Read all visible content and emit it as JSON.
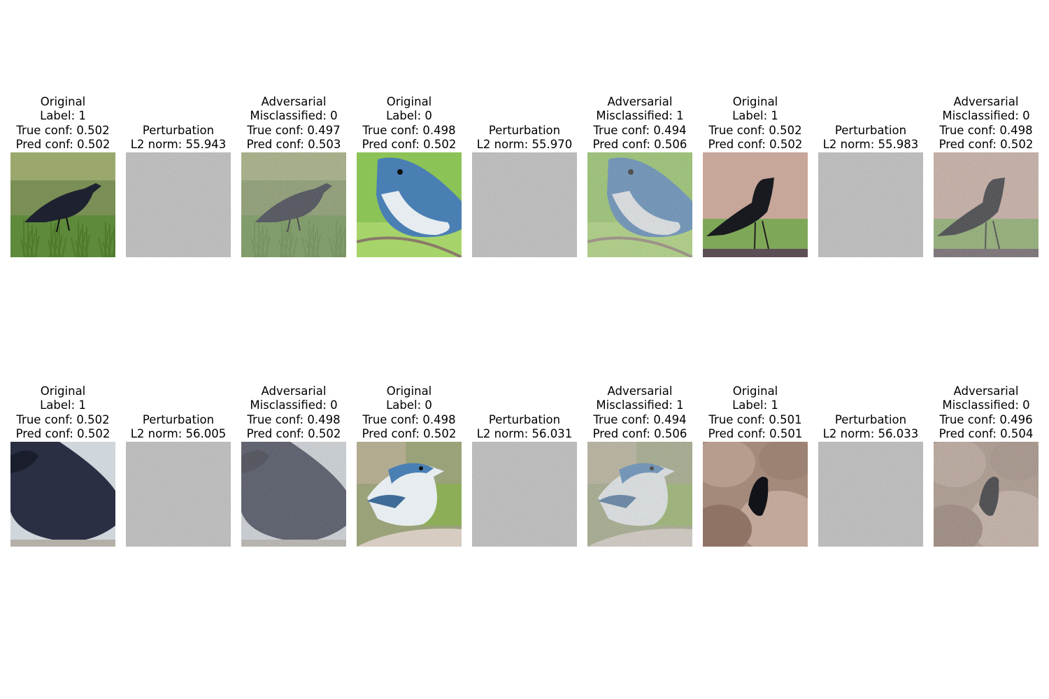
{
  "rows": [
    {
      "panels": [
        {
          "lines": [
            "Original",
            "Label: 1",
            "True conf: 0.502",
            "Pred conf: 0.502"
          ],
          "kind": "original",
          "subject": "crow",
          "scene": "grass"
        },
        {
          "lines": [
            "Perturbation",
            "L2 norm: 55.943"
          ],
          "kind": "perturbation"
        },
        {
          "lines": [
            "Adversarial",
            "Misclassified: 0",
            "True conf: 0.497",
            "Pred conf: 0.503"
          ],
          "kind": "adversarial",
          "subject": "crow",
          "scene": "grass"
        },
        {
          "lines": [
            "Original",
            "Label: 0",
            "True conf: 0.498",
            "Pred conf: 0.502"
          ],
          "kind": "original",
          "subject": "warbler",
          "scene": "green-closeup"
        },
        {
          "lines": [
            "Perturbation",
            "L2 norm: 55.970"
          ],
          "kind": "perturbation"
        },
        {
          "lines": [
            "Adversarial",
            "Misclassified: 1",
            "True conf: 0.494",
            "Pred conf: 0.506"
          ],
          "kind": "adversarial",
          "subject": "warbler",
          "scene": "green-closeup"
        },
        {
          "lines": [
            "Original",
            "Label: 1",
            "True conf: 0.502",
            "Pred conf: 0.502"
          ],
          "kind": "original",
          "subject": "crow",
          "scene": "fence"
        },
        {
          "lines": [
            "Perturbation",
            "L2 norm: 55.983"
          ],
          "kind": "perturbation"
        },
        {
          "lines": [
            "Adversarial",
            "Misclassified: 0",
            "True conf: 0.498",
            "Pred conf: 0.502"
          ],
          "kind": "adversarial",
          "subject": "crow",
          "scene": "fence"
        }
      ]
    },
    {
      "panels": [
        {
          "lines": [
            "Original",
            "Label: 1",
            "True conf: 0.502",
            "Pred conf: 0.502"
          ],
          "kind": "original",
          "subject": "crow",
          "scene": "snow-closeup"
        },
        {
          "lines": [
            "Perturbation",
            "L2 norm: 56.005"
          ],
          "kind": "perturbation"
        },
        {
          "lines": [
            "Adversarial",
            "Misclassified: 0",
            "True conf: 0.498",
            "Pred conf: 0.502"
          ],
          "kind": "adversarial",
          "subject": "crow",
          "scene": "snow-closeup"
        },
        {
          "lines": [
            "Original",
            "Label: 0",
            "True conf: 0.498",
            "Pred conf: 0.502"
          ],
          "kind": "original",
          "subject": "warbler",
          "scene": "branch"
        },
        {
          "lines": [
            "Perturbation",
            "L2 norm: 56.031"
          ],
          "kind": "perturbation"
        },
        {
          "lines": [
            "Adversarial",
            "Misclassified: 1",
            "True conf: 0.494",
            "Pred conf: 0.506"
          ],
          "kind": "adversarial",
          "subject": "warbler",
          "scene": "branch"
        },
        {
          "lines": [
            "Original",
            "Label: 1",
            "True conf: 0.501",
            "Pred conf: 0.501"
          ],
          "kind": "original",
          "subject": "crow",
          "scene": "rocks"
        },
        {
          "lines": [
            "Perturbation",
            "L2 norm: 56.033"
          ],
          "kind": "perturbation"
        },
        {
          "lines": [
            "Adversarial",
            "Misclassified: 0",
            "True conf: 0.496",
            "Pred conf: 0.504"
          ],
          "kind": "adversarial",
          "subject": "crow",
          "scene": "rocks"
        }
      ]
    }
  ],
  "colors": {
    "perturbation_gray": "#7f7f7f",
    "grass": "#5e8a3c",
    "crow": "#1e2230",
    "warbler_blue": "#4a7fb4",
    "warbler_white": "#e6ecef",
    "leaf_green": "#8cc356",
    "fence_bg": "#c7a79a",
    "rock": "#a48a7a",
    "snow": "#cfd6dc"
  }
}
